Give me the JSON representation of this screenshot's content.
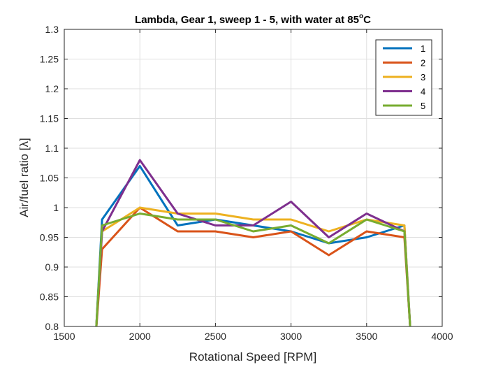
{
  "chart_data": {
    "type": "line",
    "title": "Lambda, Gear 1, sweep 1 - 5, with water at 85",
    "title_superscript": "o",
    "title_suffix": "C",
    "xlabel": "Rotational Speed [RPM]",
    "ylabel": "Air/fuel ratio [λ]",
    "xlim": [
      1500,
      4000
    ],
    "ylim": [
      0.8,
      1.3
    ],
    "xticks": [
      1500,
      2000,
      2500,
      3000,
      3500,
      4000
    ],
    "yticks": [
      0.8,
      0.85,
      0.9,
      0.95,
      1,
      1.05,
      1.1,
      1.15,
      1.2,
      1.25,
      1.3
    ],
    "grid": true,
    "legend_position": "top-right",
    "x": [
      1710,
      1750,
      2000,
      2250,
      2500,
      2750,
      3000,
      3250,
      3500,
      3750,
      3790
    ],
    "series": [
      {
        "name": "1",
        "color": "#0072BD",
        "values": [
          0.79,
          0.98,
          1.07,
          0.97,
          0.98,
          0.97,
          0.96,
          0.94,
          0.95,
          0.97,
          0.79
        ]
      },
      {
        "name": "2",
        "color": "#D95319",
        "values": [
          0.79,
          0.93,
          1.0,
          0.96,
          0.96,
          0.95,
          0.96,
          0.92,
          0.96,
          0.95,
          0.79
        ]
      },
      {
        "name": "3",
        "color": "#EDB120",
        "values": [
          0.79,
          0.96,
          1.0,
          0.99,
          0.99,
          0.98,
          0.98,
          0.96,
          0.98,
          0.97,
          0.79
        ]
      },
      {
        "name": "4",
        "color": "#7E2F8E",
        "values": [
          0.79,
          0.96,
          1.08,
          0.99,
          0.97,
          0.97,
          1.01,
          0.95,
          0.99,
          0.96,
          0.79
        ]
      },
      {
        "name": "5",
        "color": "#77AC30",
        "values": [
          0.79,
          0.97,
          0.99,
          0.98,
          0.98,
          0.96,
          0.97,
          0.94,
          0.98,
          0.96,
          0.79
        ]
      }
    ]
  }
}
